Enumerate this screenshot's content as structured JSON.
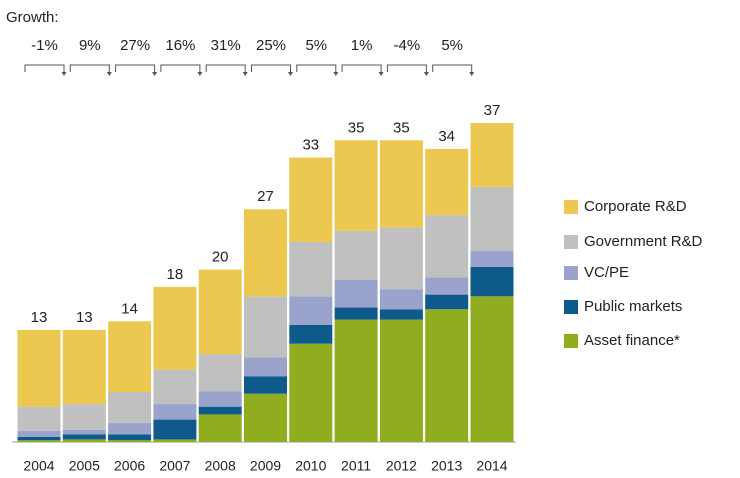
{
  "chart_data": {
    "type": "stacked_bar",
    "growth": {
      "title": "Growth:",
      "values": [
        -1,
        9,
        27,
        16,
        31,
        25,
        5,
        1,
        -4,
        5
      ],
      "value_labels": [
        "-1%",
        "9%",
        "27%",
        "16%",
        "31%",
        "25%",
        "5%",
        "1%",
        "-4%",
        "5%"
      ]
    },
    "categories": [
      "2004",
      "2005",
      "2006",
      "2007",
      "2008",
      "2009",
      "2010",
      "2011",
      "2012",
      "2013",
      "2014"
    ],
    "totals": [
      13,
      13,
      14,
      18,
      20,
      27,
      33,
      35,
      35,
      34,
      37
    ],
    "series": [
      {
        "name": "Asset finance*",
        "color": "#8fad1e",
        "values": [
          0.2,
          0.3,
          0.2,
          0.3,
          3.2,
          5.6,
          11.4,
          14.2,
          14.2,
          15.4,
          16.9
        ]
      },
      {
        "name": "Public markets",
        "color": "#0e5a8a",
        "values": [
          0.4,
          0.6,
          0.7,
          2.3,
          0.9,
          2.0,
          2.2,
          1.4,
          1.2,
          1.7,
          3.4
        ]
      },
      {
        "name": "VC/PE",
        "color": "#9aa3cc",
        "values": [
          0.7,
          0.5,
          1.3,
          1.8,
          1.8,
          2.2,
          3.3,
          3.2,
          2.3,
          2.0,
          1.9
        ]
      },
      {
        "name": "Government R&D",
        "color": "#c0c0c0",
        "values": [
          2.8,
          3.0,
          3.6,
          4.0,
          4.3,
          7.1,
          6.3,
          5.7,
          7.2,
          7.2,
          7.4
        ]
      },
      {
        "name": "Corporate R&D",
        "color": "#ecc850",
        "values": [
          8.9,
          8.6,
          8.2,
          9.6,
          9.8,
          10.1,
          9.8,
          10.5,
          10.1,
          7.7,
          7.4
        ]
      }
    ]
  }
}
